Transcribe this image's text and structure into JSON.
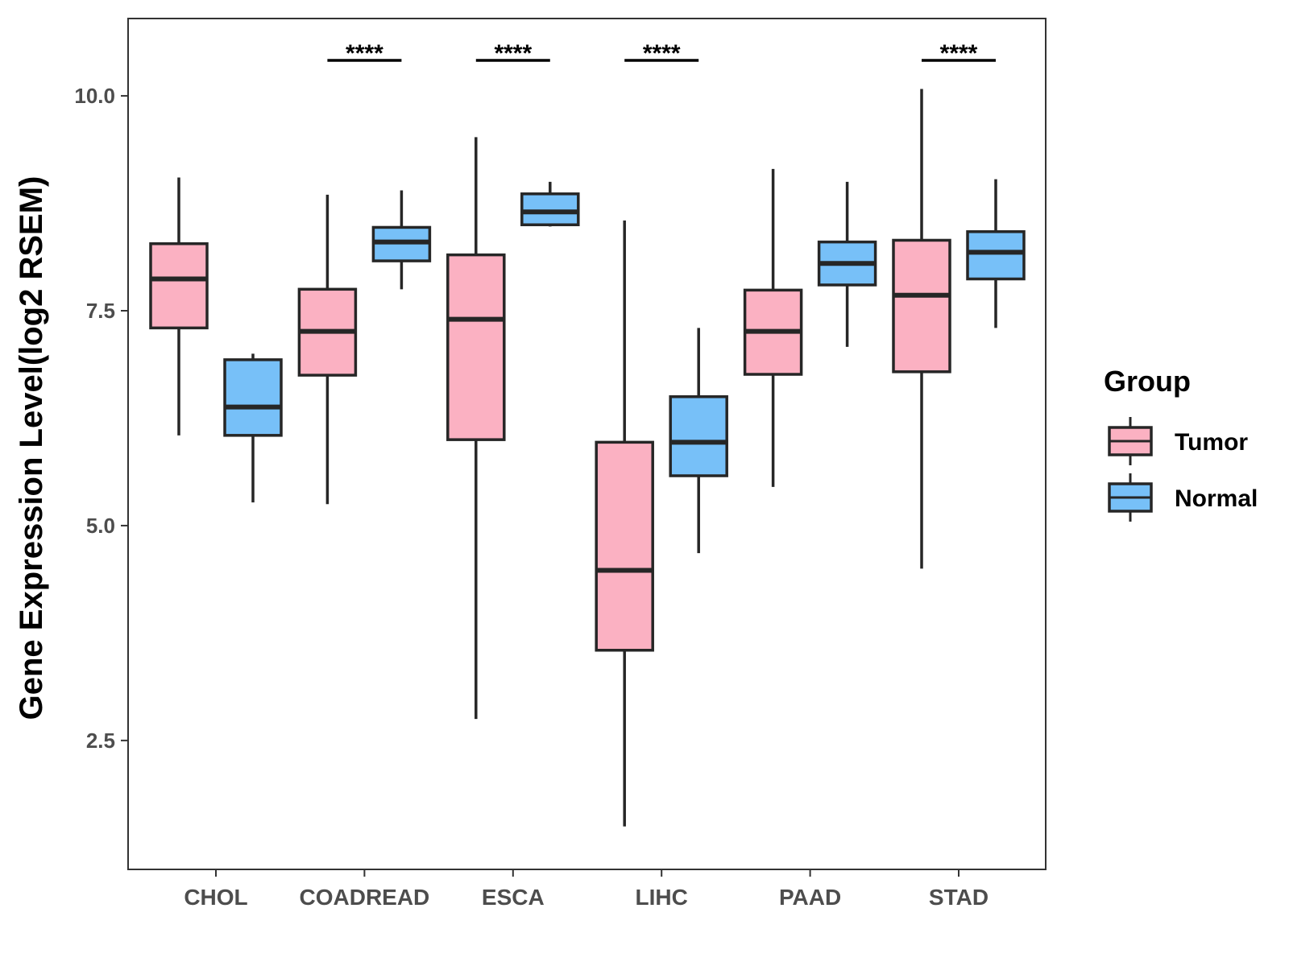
{
  "chart_data": {
    "type": "boxplot",
    "title": "",
    "xlabel": "",
    "ylabel": "Gene Expression Level(log2 RSEM)",
    "ylim": [
      1.0,
      10.9
    ],
    "yticks": [
      {
        "value": 2.5,
        "label": "2.5"
      },
      {
        "value": 5.0,
        "label": "5.0"
      },
      {
        "value": 7.5,
        "label": "7.5"
      },
      {
        "value": 10.0,
        "label": "10.0"
      }
    ],
    "grid": false,
    "categories": [
      "CHOL",
      "COADREAD",
      "ESCA",
      "LIHC",
      "PAAD",
      "STAD"
    ],
    "legend": {
      "title": "Group",
      "position": "right",
      "entries": [
        {
          "name": "Tumor",
          "color": "#FBB1C2"
        },
        {
          "name": "Normal",
          "color": "#77C0F8"
        }
      ]
    },
    "series": [
      {
        "name": "Tumor",
        "color": "#FBB1C2",
        "boxes": [
          {
            "category": "CHOL",
            "min": 6.05,
            "q1": 7.3,
            "median": 7.87,
            "q3": 8.28,
            "max": 9.05
          },
          {
            "category": "COADREAD",
            "min": 5.25,
            "q1": 6.75,
            "median": 7.26,
            "q3": 7.75,
            "max": 8.85
          },
          {
            "category": "ESCA",
            "min": 2.75,
            "q1": 6.0,
            "median": 7.4,
            "q3": 8.15,
            "max": 9.52
          },
          {
            "category": "LIHC",
            "min": 1.5,
            "q1": 3.55,
            "median": 4.48,
            "q3": 5.97,
            "max": 8.55
          },
          {
            "category": "PAAD",
            "min": 5.45,
            "q1": 6.76,
            "median": 7.26,
            "q3": 7.74,
            "max": 9.15
          },
          {
            "category": "STAD",
            "min": 4.5,
            "q1": 6.79,
            "median": 7.68,
            "q3": 8.32,
            "max": 10.08
          }
        ]
      },
      {
        "name": "Normal",
        "color": "#77C0F8",
        "boxes": [
          {
            "category": "CHOL",
            "min": 5.27,
            "q1": 6.05,
            "median": 6.38,
            "q3": 6.93,
            "max": 7.0
          },
          {
            "category": "COADREAD",
            "min": 7.75,
            "q1": 8.08,
            "median": 8.3,
            "q3": 8.47,
            "max": 8.9
          },
          {
            "category": "ESCA",
            "min": 8.48,
            "q1": 8.5,
            "median": 8.65,
            "q3": 8.86,
            "max": 9.0
          },
          {
            "category": "LIHC",
            "min": 4.68,
            "q1": 5.58,
            "median": 5.97,
            "q3": 6.5,
            "max": 7.3
          },
          {
            "category": "PAAD",
            "min": 7.08,
            "q1": 7.8,
            "median": 8.05,
            "q3": 8.3,
            "max": 9.0
          },
          {
            "category": "STAD",
            "min": 7.3,
            "q1": 7.87,
            "median": 8.18,
            "q3": 8.42,
            "max": 9.03
          }
        ]
      }
    ],
    "annotations": [
      {
        "category": "COADREAD",
        "text": "****"
      },
      {
        "category": "ESCA",
        "text": "****"
      },
      {
        "category": "LIHC",
        "text": "****"
      },
      {
        "category": "STAD",
        "text": "****"
      }
    ]
  }
}
